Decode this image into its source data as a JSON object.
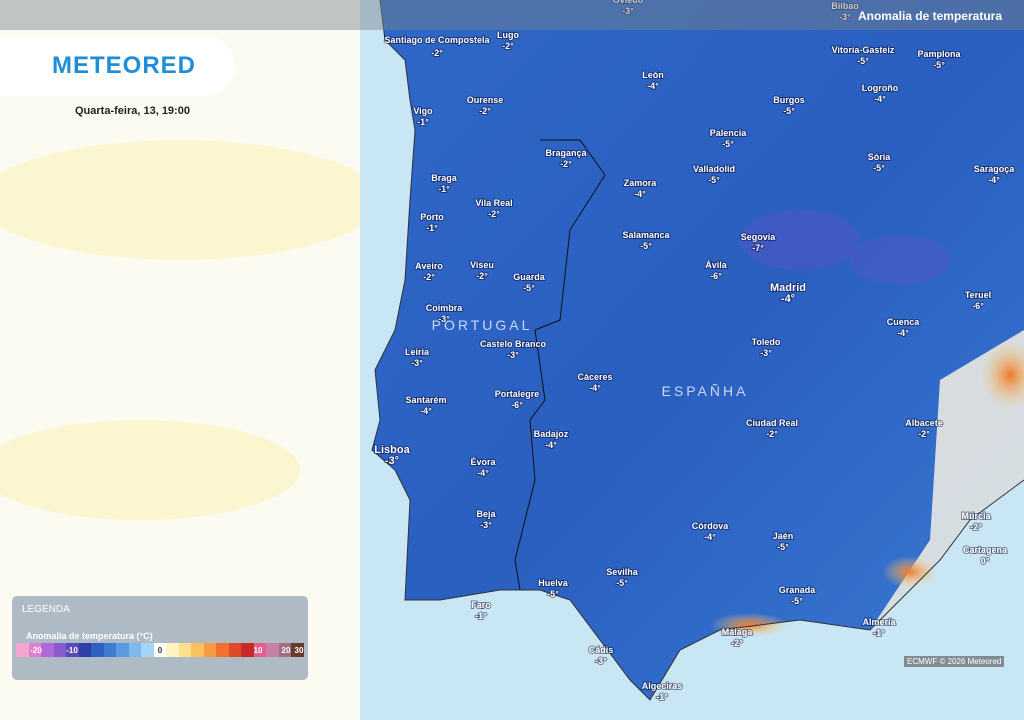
{
  "header": {
    "title": "Anomalia de temperatura",
    "logo": "METEORED",
    "date": "Quarta-feira, 13, 19:00"
  },
  "countries": [
    "PORTUGAL",
    "ESPAÑHA"
  ],
  "cities": [
    {
      "name": "Oviedo",
      "value": "-3°"
    },
    {
      "name": "Bilbao",
      "value": "-3°"
    },
    {
      "name": "Santiago de Compostela",
      "value": "-2°"
    },
    {
      "name": "Lugo",
      "value": "-2°"
    },
    {
      "name": "León",
      "value": "-4°"
    },
    {
      "name": "Vitoria-Gasteiz",
      "value": "-5°"
    },
    {
      "name": "Pamplona",
      "value": "-5°"
    },
    {
      "name": "Ourense",
      "value": "-2°"
    },
    {
      "name": "Vigo",
      "value": "-1°"
    },
    {
      "name": "Burgos",
      "value": "-5°"
    },
    {
      "name": "Logroño",
      "value": "-4°"
    },
    {
      "name": "Palencia",
      "value": "-5°"
    },
    {
      "name": "Bragança",
      "value": "-2°"
    },
    {
      "name": "Sória",
      "value": "-5°"
    },
    {
      "name": "Saragoça",
      "value": "-4°"
    },
    {
      "name": "Valladolid",
      "value": "-5°"
    },
    {
      "name": "Zamora",
      "value": "-4°"
    },
    {
      "name": "Braga",
      "value": "-1°"
    },
    {
      "name": "Vila Real",
      "value": "-2°"
    },
    {
      "name": "Porto",
      "value": "-1°"
    },
    {
      "name": "Salamanca",
      "value": "-5°"
    },
    {
      "name": "Segovia",
      "value": "-7°"
    },
    {
      "name": "Aveiro",
      "value": "-2°"
    },
    {
      "name": "Viseu",
      "value": "-2°"
    },
    {
      "name": "Guarda",
      "value": "-5°"
    },
    {
      "name": "Ávila",
      "value": "-6°"
    },
    {
      "name": "Madrid",
      "value": "-4°"
    },
    {
      "name": "Teruel",
      "value": "-6°"
    },
    {
      "name": "Coimbra",
      "value": "-3°"
    },
    {
      "name": "Cuenca",
      "value": "-4°"
    },
    {
      "name": "Castelo Branco",
      "value": "-3°"
    },
    {
      "name": "Toledo",
      "value": "-3°"
    },
    {
      "name": "Leiria",
      "value": "-3°"
    },
    {
      "name": "Cáceres",
      "value": "-4°"
    },
    {
      "name": "Portalegre",
      "value": "-6°"
    },
    {
      "name": "Santarém",
      "value": "-4°"
    },
    {
      "name": "Ciudad Real",
      "value": "-2°"
    },
    {
      "name": "Albacete",
      "value": "-2°"
    },
    {
      "name": "Badajoz",
      "value": "-4°"
    },
    {
      "name": "Lisboa",
      "value": "-3°"
    },
    {
      "name": "Évora",
      "value": "-4°"
    },
    {
      "name": "Beja",
      "value": "-3°"
    },
    {
      "name": "Múrcia",
      "value": "-2°"
    },
    {
      "name": "Córdova",
      "value": "-4°"
    },
    {
      "name": "Jaén",
      "value": "-5°"
    },
    {
      "name": "Cartagena",
      "value": "0°"
    },
    {
      "name": "Sevilha",
      "value": "-5°"
    },
    {
      "name": "Huelva",
      "value": "-5°"
    },
    {
      "name": "Granada",
      "value": "-5°"
    },
    {
      "name": "Faro",
      "value": "-1°"
    },
    {
      "name": "Almería",
      "value": "-1°"
    },
    {
      "name": "Málaga",
      "value": "-2°"
    },
    {
      "name": "Cádis",
      "value": "-3°"
    },
    {
      "name": "Algeciras",
      "value": "-1°"
    }
  ],
  "legend": {
    "title": "LEGENDA",
    "subtitle": "Anomalia de temperatura (°C)",
    "labels": [
      "-20",
      "-10",
      "0",
      "10",
      "20",
      "30"
    ]
  },
  "credit": "ECMWF © 2026 Meteored"
}
